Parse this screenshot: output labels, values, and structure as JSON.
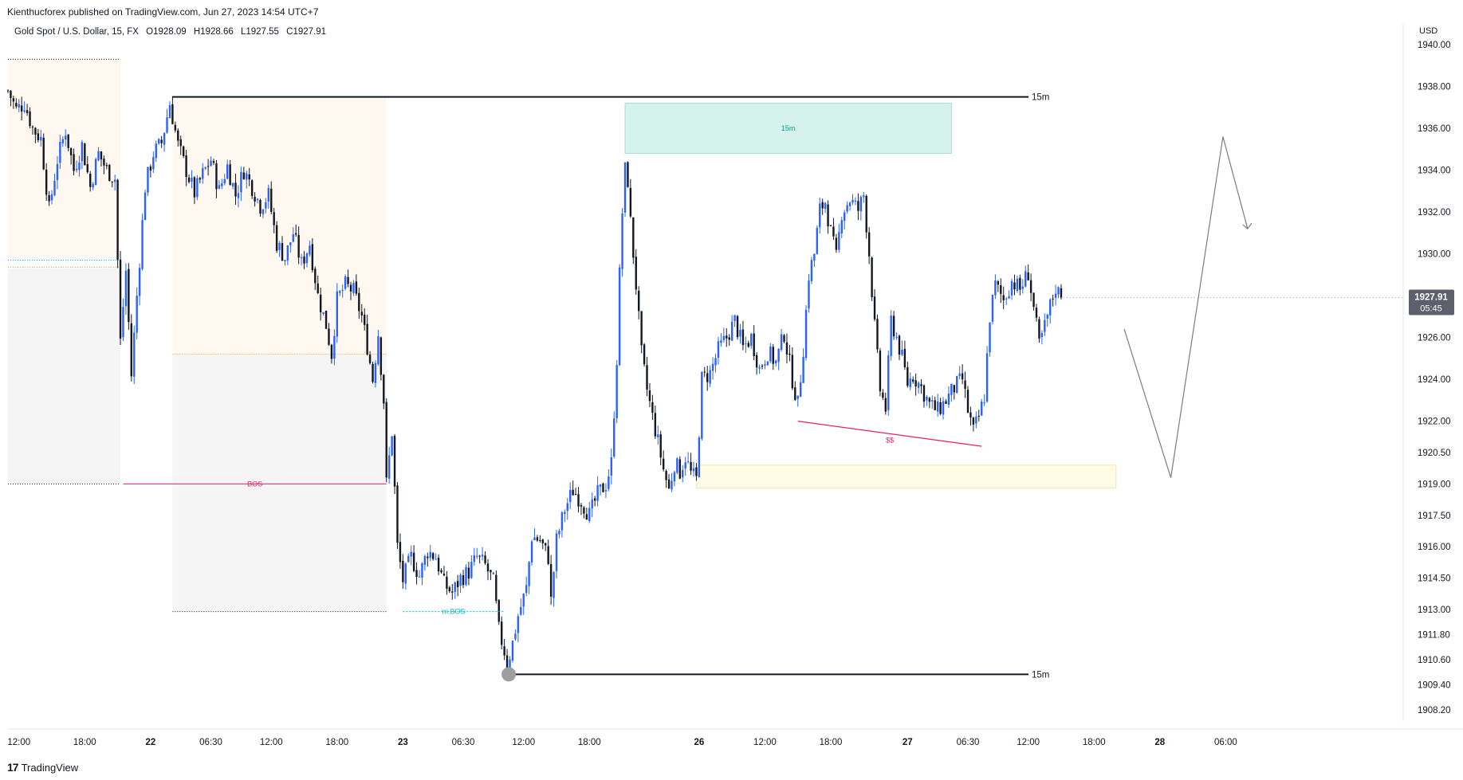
{
  "header": {
    "published_by": "Kienthucforex published on TradingView.com, Jun 27, 2023 14:54 UTC+7",
    "symbol": "Gold Spot / U.S. Dollar, 15, FX",
    "open": "O1928.09",
    "high": "H1928.66",
    "low": "L1927.55",
    "close": "C1927.91"
  },
  "price_axis": {
    "currency": "USD"
  },
  "last_price": {
    "price": "1927.91",
    "countdown": "05:45",
    "color": "#5d606b"
  },
  "footer": {
    "brand": "TradingView"
  },
  "colors": {
    "up": "#2962ff",
    "down": "#131722",
    "supply_zone": "#d5f2ec",
    "demand_zone": "#fffbe5",
    "premium_zone": "#fff8f0",
    "discount_zone": "#f5f5f5",
    "label_red": "#e91e63",
    "label_teal": "#089981",
    "label_cyan": "#00bcd4"
  },
  "chart_data": {
    "type": "candlestick",
    "title": "Gold Spot / U.S. Dollar, 15, FX",
    "ylabel": "USD",
    "ylim": [
      1907.3,
      1940.6
    ],
    "y_ticks": [
      {
        "value": 1940.0,
        "label": "1940.00"
      },
      {
        "value": 1938.0,
        "label": "1938.00"
      },
      {
        "value": 1936.0,
        "label": "1936.00"
      },
      {
        "value": 1934.0,
        "label": "1934.00"
      },
      {
        "value": 1932.0,
        "label": "1932.00"
      },
      {
        "value": 1930.0,
        "label": "1930.00"
      },
      {
        "value": 1926.0,
        "label": "1926.00"
      },
      {
        "value": 1924.0,
        "label": "1924.00"
      },
      {
        "value": 1922.0,
        "label": "1922.00"
      },
      {
        "value": 1920.5,
        "label": "1920.50"
      },
      {
        "value": 1919.0,
        "label": "1919.00"
      },
      {
        "value": 1917.5,
        "label": "1917.50"
      },
      {
        "value": 1916.0,
        "label": "1916.00"
      },
      {
        "value": 1914.5,
        "label": "1914.50"
      },
      {
        "value": 1913.0,
        "label": "1913.00"
      },
      {
        "value": 1911.8,
        "label": "1911.80"
      },
      {
        "value": 1910.6,
        "label": "1910.60"
      },
      {
        "value": 1909.4,
        "label": "1909.40"
      },
      {
        "value": 1908.2,
        "label": "1908.20"
      }
    ],
    "x_ticks": [
      {
        "idx": 4,
        "label": "12:00"
      },
      {
        "idx": 28,
        "label": "18:00"
      },
      {
        "idx": 52,
        "label": "22"
      },
      {
        "idx": 74,
        "label": "06:30"
      },
      {
        "idx": 96,
        "label": "12:00"
      },
      {
        "idx": 120,
        "label": "18:00"
      },
      {
        "idx": 144,
        "label": "23"
      },
      {
        "idx": 166,
        "label": "06:30"
      },
      {
        "idx": 188,
        "label": "12:00"
      },
      {
        "idx": 212,
        "label": "18:00"
      },
      {
        "idx": 252,
        "label": "26"
      },
      {
        "idx": 276,
        "label": "12:00"
      },
      {
        "idx": 300,
        "label": "18:00"
      },
      {
        "idx": 328,
        "label": "27"
      },
      {
        "idx": 350,
        "label": "06:30"
      },
      {
        "idx": 372,
        "label": "12:00"
      },
      {
        "idx": 396,
        "label": "18:00"
      },
      {
        "idx": 420,
        "label": "28"
      },
      {
        "idx": 444,
        "label": "06:00"
      }
    ],
    "path": [
      [
        0,
        1937.8
      ],
      [
        3,
        1936.9
      ],
      [
        6,
        1937.2
      ],
      [
        9,
        1936.0
      ],
      [
        12,
        1935.5
      ],
      [
        15,
        1932.1
      ],
      [
        18,
        1934.5
      ],
      [
        21,
        1935.9
      ],
      [
        24,
        1934.0
      ],
      [
        27,
        1935.2
      ],
      [
        30,
        1933.2
      ],
      [
        33,
        1934.8
      ],
      [
        36,
        1934.0
      ],
      [
        39,
        1933.6
      ],
      [
        41,
        1925.8
      ],
      [
        43,
        1929.2
      ],
      [
        45,
        1924.2
      ],
      [
        47,
        1928.0
      ],
      [
        50,
        1933.2
      ],
      [
        53,
        1934.8
      ],
      [
        56,
        1935.3
      ],
      [
        59,
        1937.2
      ],
      [
        62,
        1935.2
      ],
      [
        65,
        1934.0
      ],
      [
        68,
        1932.9
      ],
      [
        71,
        1933.8
      ],
      [
        74,
        1934.5
      ],
      [
        77,
        1933.0
      ],
      [
        80,
        1934.2
      ],
      [
        83,
        1932.8
      ],
      [
        86,
        1934.0
      ],
      [
        89,
        1933.2
      ],
      [
        92,
        1932.3
      ],
      [
        95,
        1932.8
      ],
      [
        98,
        1930.5
      ],
      [
        101,
        1929.8
      ],
      [
        104,
        1931.0
      ],
      [
        107,
        1929.5
      ],
      [
        110,
        1930.5
      ],
      [
        113,
        1928.0
      ],
      [
        116,
        1926.6
      ],
      [
        118,
        1925.2
      ],
      [
        120,
        1927.8
      ],
      [
        123,
        1928.5
      ],
      [
        126,
        1928.2
      ],
      [
        129,
        1927.0
      ],
      [
        131,
        1925.6
      ],
      [
        133,
        1924.0
      ],
      [
        135,
        1926.2
      ],
      [
        137,
        1923.0
      ],
      [
        138,
        1919.0
      ],
      [
        140,
        1921.5
      ],
      [
        142,
        1916.0
      ],
      [
        144,
        1914.4
      ],
      [
        147,
        1915.5
      ],
      [
        150,
        1914.6
      ],
      [
        153,
        1915.8
      ],
      [
        156,
        1915.5
      ],
      [
        159,
        1914.2
      ],
      [
        162,
        1913.8
      ],
      [
        165,
        1914.5
      ],
      [
        168,
        1914.8
      ],
      [
        171,
        1915.5
      ],
      [
        174,
        1915.1
      ],
      [
        177,
        1914.3
      ],
      [
        179,
        1912.0
      ],
      [
        181,
        1911.0
      ],
      [
        182,
        1910.3
      ],
      [
        184,
        1911.4
      ],
      [
        186,
        1912.7
      ],
      [
        189,
        1914.0
      ],
      [
        191,
        1916.5
      ],
      [
        194,
        1916.3
      ],
      [
        197,
        1915.5
      ],
      [
        198,
        1913.4
      ],
      [
        200,
        1916.3
      ],
      [
        203,
        1917.8
      ],
      [
        206,
        1918.7
      ],
      [
        209,
        1918.2
      ],
      [
        212,
        1917.5
      ],
      [
        215,
        1918.5
      ],
      [
        218,
        1919.0
      ],
      [
        220,
        1920.0
      ],
      [
        222,
        1925.0
      ],
      [
        223,
        1929.0
      ],
      [
        224,
        1932.0
      ],
      [
        225,
        1934.0
      ],
      [
        226,
        1933.5
      ],
      [
        227,
        1931.5
      ],
      [
        229,
        1928.5
      ],
      [
        231,
        1925.2
      ],
      [
        233,
        1923.5
      ],
      [
        235,
        1922.2
      ],
      [
        237,
        1921.0
      ],
      [
        239,
        1919.7
      ],
      [
        241,
        1918.7
      ],
      [
        243,
        1920.0
      ],
      [
        245,
        1919.6
      ],
      [
        247,
        1920.3
      ],
      [
        249,
        1919.5
      ],
      [
        251,
        1919.2
      ],
      [
        253,
        1924.0
      ],
      [
        256,
        1924.3
      ],
      [
        259,
        1925.4
      ],
      [
        262,
        1926.0
      ],
      [
        265,
        1926.8
      ],
      [
        268,
        1925.5
      ],
      [
        271,
        1926.0
      ],
      [
        274,
        1924.5
      ],
      [
        277,
        1925.3
      ],
      [
        280,
        1924.8
      ],
      [
        283,
        1926.2
      ],
      [
        286,
        1924.0
      ],
      [
        288,
        1922.8
      ],
      [
        290,
        1925.5
      ],
      [
        292,
        1929.0
      ],
      [
        294,
        1930.0
      ],
      [
        296,
        1932.1
      ],
      [
        298,
        1932.5
      ],
      [
        300,
        1931.0
      ],
      [
        302,
        1929.8
      ],
      [
        304,
        1932.0
      ],
      [
        307,
        1932.6
      ],
      [
        310,
        1932.1
      ],
      [
        312,
        1932.8
      ],
      [
        314,
        1930.0
      ],
      [
        316,
        1926.5
      ],
      [
        318,
        1923.5
      ],
      [
        320,
        1922.6
      ],
      [
        322,
        1926.8
      ],
      [
        324,
        1926.0
      ],
      [
        326,
        1925.0
      ],
      [
        328,
        1923.8
      ],
      [
        330,
        1924.2
      ],
      [
        333,
        1923.6
      ],
      [
        336,
        1922.8
      ],
      [
        339,
        1922.5
      ],
      [
        342,
        1923.0
      ],
      [
        345,
        1923.6
      ],
      [
        348,
        1924.0
      ],
      [
        350,
        1922.5
      ],
      [
        352,
        1921.5
      ],
      [
        354,
        1922.2
      ],
      [
        356,
        1923.2
      ],
      [
        358,
        1927.0
      ],
      [
        360,
        1928.5
      ],
      [
        363,
        1927.8
      ],
      [
        366,
        1928.7
      ],
      [
        369,
        1928.3
      ],
      [
        372,
        1929.1
      ],
      [
        374,
        1927.4
      ],
      [
        376,
        1925.6
      ],
      [
        378,
        1926.5
      ],
      [
        380,
        1927.5
      ],
      [
        382,
        1928.4
      ],
      [
        384,
        1927.91
      ]
    ],
    "annotations": [
      {
        "type": "hline",
        "label": "15m",
        "price": 1937.5,
        "from_idx": 60,
        "to_idx": 375
      },
      {
        "type": "hline",
        "label": "15m",
        "price": 1909.9,
        "from_idx": 182,
        "to_idx": 375
      },
      {
        "type": "zone",
        "label": "15m",
        "price_top": 1937.2,
        "price_bottom": 1934.8,
        "from_idx": 225,
        "to_idx": 344,
        "color_key": "supply_zone"
      },
      {
        "type": "zone",
        "label": "",
        "price_top": 1919.9,
        "price_bottom": 1918.8,
        "from_idx": 251,
        "to_idx": 404,
        "color_key": "demand_zone"
      },
      {
        "type": "level",
        "label": "BOS",
        "price": 1919.0,
        "from_idx": 42,
        "to_idx": 138
      },
      {
        "type": "level",
        "label": "m.BOS",
        "price": 1912.9,
        "from_idx": 144,
        "to_idx": 181
      },
      {
        "type": "trendline",
        "label": "$$",
        "from": [
          288,
          1922.0
        ],
        "to": [
          355,
          1920.8
        ]
      },
      {
        "type": "projection",
        "points": [
          [
            407,
            1926.4
          ],
          [
            424,
            1919.3
          ],
          [
            443,
            1935.6
          ],
          [
            452,
            1931.2
          ]
        ]
      }
    ]
  }
}
